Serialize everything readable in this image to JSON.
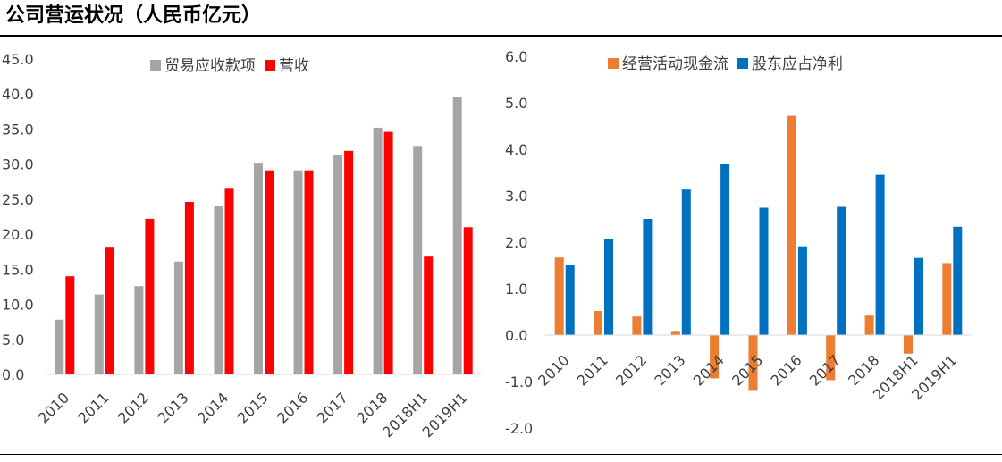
{
  "title": "公司营运状况（人民币亿元）",
  "colors": {
    "gray": "#A5A5A5",
    "red": "#FF0000",
    "orange": "#ED7D31",
    "blue": "#0070C0",
    "axis": "#D9D9D9",
    "text": "#404040"
  },
  "chart_data": [
    {
      "type": "bar",
      "categories": [
        "2010",
        "2011",
        "2012",
        "2013",
        "2014",
        "2015",
        "2016",
        "2017",
        "2018",
        "2018H1",
        "2019H1"
      ],
      "series": [
        {
          "name": "贸易应收款项",
          "color": "#A5A5A5",
          "values": [
            7.8,
            11.4,
            12.6,
            16.1,
            24.0,
            30.2,
            29.1,
            31.3,
            35.2,
            32.6,
            39.6
          ]
        },
        {
          "name": "营收",
          "color": "#FF0000",
          "values": [
            14.0,
            18.2,
            22.2,
            24.6,
            26.6,
            29.1,
            29.1,
            31.9,
            34.6,
            16.8,
            21.0
          ]
        }
      ],
      "yticks": [
        "0.0",
        "5.0",
        "10.0",
        "15.0",
        "20.0",
        "25.0",
        "30.0",
        "35.0",
        "40.0",
        "45.0"
      ],
      "ylim": [
        0,
        45
      ],
      "legend_position": "top-center",
      "grid": false
    },
    {
      "type": "bar",
      "categories": [
        "2010",
        "2011",
        "2012",
        "2013",
        "2014",
        "2015",
        "2016",
        "2017",
        "2018",
        "2018H1",
        "2019H1"
      ],
      "series": [
        {
          "name": "经营活动现金流",
          "color": "#ED7D31",
          "values": [
            1.67,
            0.52,
            0.4,
            0.09,
            -0.93,
            -1.18,
            4.72,
            -0.97,
            0.42,
            -0.4,
            1.55
          ]
        },
        {
          "name": "股东应占净利",
          "color": "#0070C0",
          "values": [
            1.51,
            2.07,
            2.5,
            3.13,
            3.69,
            2.74,
            1.91,
            2.76,
            3.45,
            1.66,
            2.33
          ]
        }
      ],
      "yticks": [
        "-2.0",
        "-1.0",
        "0.0",
        "1.0",
        "2.0",
        "3.0",
        "4.0",
        "5.0",
        "6.0"
      ],
      "ylim": [
        -2,
        6
      ],
      "legend_position": "top-center",
      "grid": false
    }
  ]
}
